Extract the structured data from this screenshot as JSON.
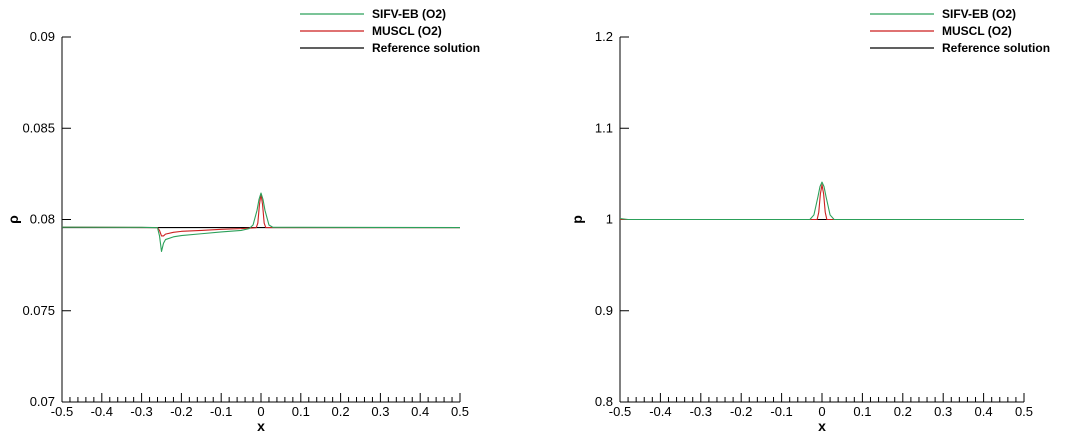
{
  "chart_data": [
    {
      "type": "line",
      "xlabel": "x",
      "ylabel": "ρ",
      "xlim": [
        -0.5,
        0.5
      ],
      "ylim": [
        0.07,
        0.09
      ],
      "x_ticks": [
        -0.5,
        -0.4,
        -0.3,
        -0.2,
        -0.1,
        0,
        0.1,
        0.2,
        0.3,
        0.4,
        0.5
      ],
      "y_ticks": [
        0.07,
        0.075,
        0.08,
        0.085,
        0.09
      ],
      "x_tick_labels": [
        "-0.5",
        "-0.4",
        "-0.3",
        "-0.2",
        "-0.1",
        "0",
        "0.1",
        "0.2",
        "0.3",
        "0.4",
        "0.5"
      ],
      "y_tick_labels": [
        "0.07",
        "0.075",
        "0.08",
        "0.085",
        "0.09"
      ],
      "grid": false,
      "legend_position": "top-right",
      "series": [
        {
          "name": "SIFV-EB (O2)",
          "color": "#2ca05a",
          "points": [
            [
              -0.5,
              0.07958
            ],
            [
              -0.3,
              0.07957
            ],
            [
              -0.26,
              0.07955
            ],
            [
              -0.255,
              0.0791
            ],
            [
              -0.25,
              0.07825
            ],
            [
              -0.245,
              0.0787
            ],
            [
              -0.24,
              0.0789
            ],
            [
              -0.22,
              0.07905
            ],
            [
              -0.2,
              0.07912
            ],
            [
              -0.15,
              0.07922
            ],
            [
              -0.1,
              0.07932
            ],
            [
              -0.05,
              0.0794
            ],
            [
              -0.03,
              0.0795
            ],
            [
              -0.02,
              0.0797
            ],
            [
              -0.01,
              0.0805
            ],
            [
              -0.005,
              0.0811
            ],
            [
              0,
              0.08145
            ],
            [
              0.005,
              0.0811
            ],
            [
              0.01,
              0.0805
            ],
            [
              0.02,
              0.0797
            ],
            [
              0.03,
              0.07957
            ],
            [
              0.1,
              0.07957
            ],
            [
              0.5,
              0.07956
            ]
          ]
        },
        {
          "name": "MUSCL (O2)",
          "color": "#cc1f1f",
          "points": [
            [
              -0.5,
              0.07958
            ],
            [
              -0.26,
              0.07956
            ],
            [
              -0.255,
              0.0794
            ],
            [
              -0.25,
              0.0791
            ],
            [
              -0.245,
              0.0791
            ],
            [
              -0.24,
              0.0792
            ],
            [
              -0.22,
              0.0793
            ],
            [
              -0.2,
              0.07935
            ],
            [
              -0.15,
              0.0794
            ],
            [
              -0.1,
              0.07946
            ],
            [
              -0.05,
              0.0795
            ],
            [
              -0.012,
              0.07955
            ],
            [
              -0.008,
              0.0798
            ],
            [
              -0.004,
              0.0808
            ],
            [
              0,
              0.0814
            ],
            [
              0.004,
              0.0808
            ],
            [
              0.008,
              0.0798
            ],
            [
              0.012,
              0.07956
            ],
            [
              0.5,
              0.07956
            ]
          ]
        },
        {
          "name": "Reference solution",
          "color": "#000000",
          "points": [
            [
              -0.5,
              0.07956
            ],
            [
              0.5,
              0.07956
            ]
          ]
        }
      ]
    },
    {
      "type": "line",
      "xlabel": "x",
      "ylabel": "p",
      "xlim": [
        -0.5,
        0.5
      ],
      "ylim": [
        0.8,
        1.2
      ],
      "x_ticks": [
        -0.5,
        -0.4,
        -0.3,
        -0.2,
        -0.1,
        0,
        0.1,
        0.2,
        0.3,
        0.4,
        0.5
      ],
      "y_ticks": [
        0.8,
        0.9,
        1.0,
        1.1,
        1.2
      ],
      "x_tick_labels": [
        "-0.5",
        "-0.4",
        "-0.3",
        "-0.2",
        "-0.1",
        "0",
        "0.1",
        "0.2",
        "0.3",
        "0.4",
        "0.5"
      ],
      "y_tick_labels": [
        "0.8",
        "0.9",
        "1",
        "1.1",
        "1.2"
      ],
      "grid": false,
      "legend_position": "top-right",
      "series": [
        {
          "name": "SIFV-EB (O2)",
          "color": "#2ca05a",
          "points": [
            [
              -0.5,
              1.001
            ],
            [
              -0.48,
              1.0
            ],
            [
              -0.1,
              1.0
            ],
            [
              -0.03,
              1.0
            ],
            [
              -0.02,
              1.005
            ],
            [
              -0.01,
              1.025
            ],
            [
              -0.005,
              1.036
            ],
            [
              0,
              1.041
            ],
            [
              0.005,
              1.036
            ],
            [
              0.01,
              1.025
            ],
            [
              0.02,
              1.005
            ],
            [
              0.03,
              1.0
            ],
            [
              0.5,
              1.0
            ]
          ]
        },
        {
          "name": "MUSCL (O2)",
          "color": "#cc1f1f",
          "points": [
            [
              -0.5,
              1.0
            ],
            [
              -0.012,
              1.0
            ],
            [
              -0.008,
              1.008
            ],
            [
              -0.004,
              1.028
            ],
            [
              0,
              1.038
            ],
            [
              0.004,
              1.028
            ],
            [
              0.008,
              1.008
            ],
            [
              0.012,
              1.0
            ],
            [
              0.5,
              1.0
            ]
          ]
        },
        {
          "name": "Reference solution",
          "color": "#000000",
          "points": [
            [
              -0.5,
              1.0
            ],
            [
              0.5,
              1.0
            ]
          ]
        }
      ]
    }
  ]
}
